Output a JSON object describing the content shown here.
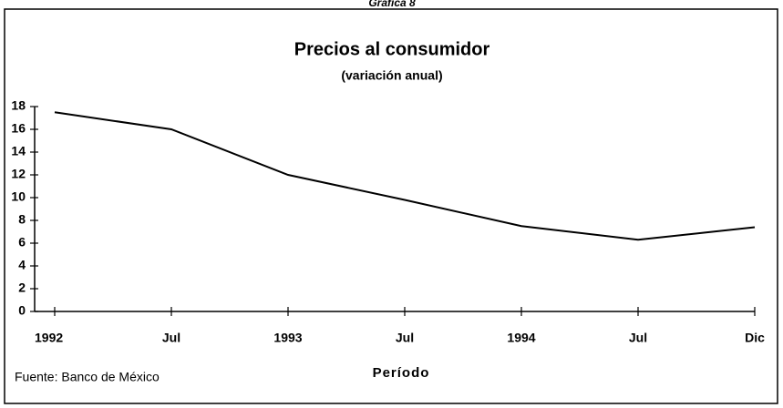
{
  "chart_data": {
    "type": "line",
    "figure_label": "Gráfica 8",
    "title": "Precios al consumidor",
    "subtitle": "(variación anual)",
    "categories": [
      "1992",
      "Jul",
      "1993",
      "Jul",
      "1994",
      "Jul",
      "Dic"
    ],
    "series": [
      {
        "name": "Precios al consumidor",
        "color": "#000000",
        "values": [
          17.5,
          16,
          12,
          9.8,
          7.5,
          6.3,
          7.4
        ]
      }
    ],
    "ylim": [
      0,
      18
    ],
    "yticks": [
      0,
      2,
      4,
      6,
      8,
      10,
      12,
      14,
      16,
      18
    ],
    "xlabel": "Período",
    "source": "Fuente: Banco de México",
    "grid": false,
    "legend": false
  }
}
